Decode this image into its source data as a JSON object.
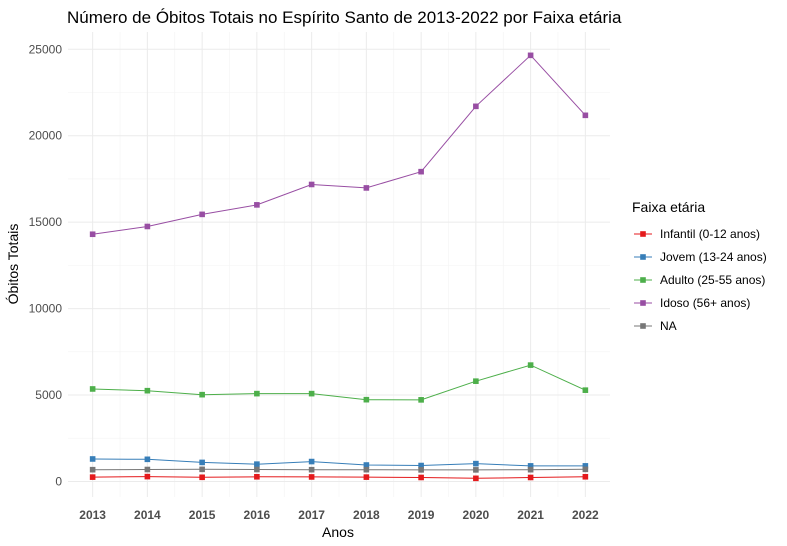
{
  "chart_data": {
    "type": "line",
    "title": "Número de Óbitos Totais no Espírito Santo de 2013-2022 por Faixa etária",
    "xlabel": "Anos",
    "ylabel": "Óbitos Totais",
    "x": [
      2013,
      2014,
      2015,
      2016,
      2017,
      2018,
      2019,
      2020,
      2021,
      2022
    ],
    "x_tick_labels": [
      "2013",
      "2014",
      "2015",
      "2016",
      "2017",
      "2018",
      "2019",
      "2020",
      "2021",
      "2022"
    ],
    "y_ticks": [
      0,
      5000,
      10000,
      15000,
      20000,
      25000
    ],
    "y_tick_labels": [
      "0",
      "5000",
      "10000",
      "15000",
      "20000",
      "25000"
    ],
    "ylim": [
      -900,
      26000
    ],
    "grid": true,
    "legend": {
      "title": "Faixa etária",
      "position": "right"
    },
    "series": [
      {
        "name": "Infantil (0-12 anos)",
        "color": "#e41a1c",
        "values": [
          250,
          280,
          240,
          270,
          260,
          250,
          230,
          180,
          230,
          270
        ]
      },
      {
        "name": "Jovem (13-24 anos)",
        "color": "#377eb8",
        "values": [
          1300,
          1280,
          1100,
          1000,
          1150,
          950,
          920,
          1030,
          900,
          900
        ]
      },
      {
        "name": "Adulto (25-55 anos)",
        "color": "#4daf4a",
        "values": [
          5350,
          5250,
          5020,
          5080,
          5080,
          4730,
          4720,
          5800,
          6730,
          5280
        ]
      },
      {
        "name": "Idoso (56+ anos)",
        "color": "#984ea3",
        "values": [
          14300,
          14750,
          15450,
          16000,
          17180,
          16980,
          17920,
          21700,
          24650,
          21180
        ]
      },
      {
        "name": "NA",
        "color": "#777777",
        "values": [
          680,
          690,
          700,
          690,
          680,
          680,
          670,
          670,
          680,
          700
        ]
      }
    ]
  }
}
